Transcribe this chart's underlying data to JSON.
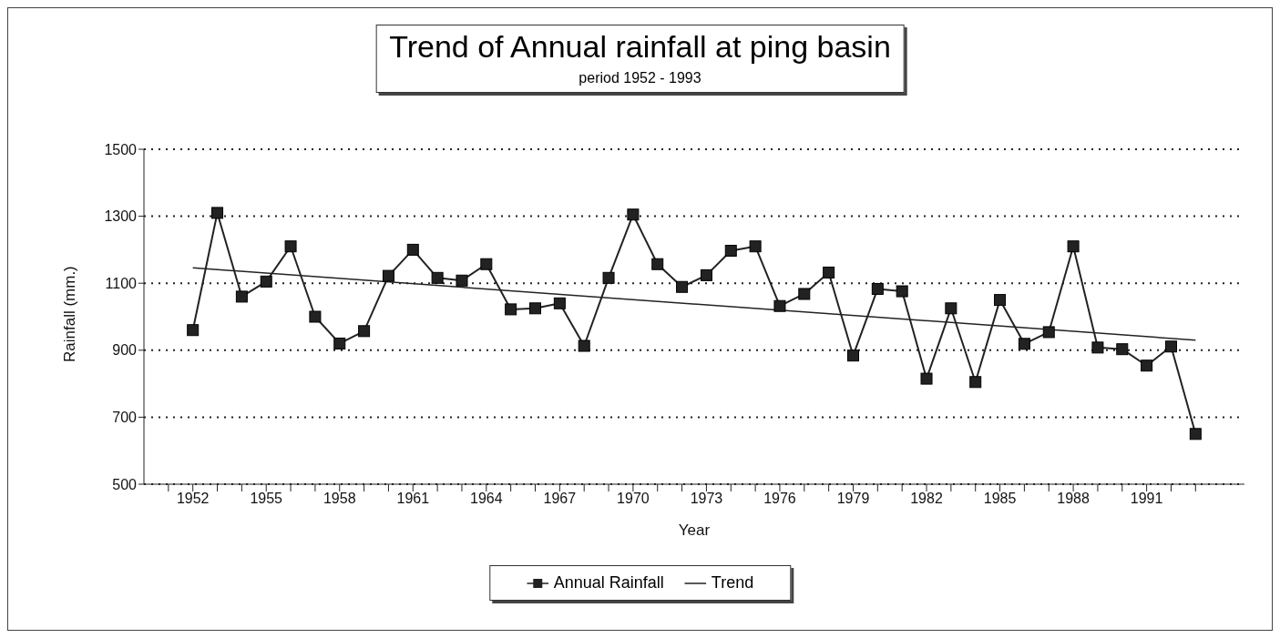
{
  "chart_data": {
    "type": "line",
    "title": "Trend of Annual rainfall at ping basin",
    "subtitle": "period 1952 - 1993",
    "xlabel": "Year",
    "ylabel": "Rainfall (mm.)",
    "x": [
      1952,
      1953,
      1954,
      1955,
      1956,
      1957,
      1958,
      1959,
      1960,
      1961,
      1962,
      1963,
      1964,
      1965,
      1966,
      1967,
      1968,
      1969,
      1970,
      1971,
      1972,
      1973,
      1974,
      1975,
      1976,
      1977,
      1978,
      1979,
      1980,
      1981,
      1982,
      1983,
      1984,
      1985,
      1986,
      1987,
      1988,
      1989,
      1990,
      1991,
      1992,
      1993
    ],
    "series": [
      {
        "name": "Annual Rainfall",
        "color": "#222222",
        "marker": "square",
        "values": [
          960,
          1310,
          1060,
          1105,
          1210,
          1000,
          920,
          957,
          1122,
          1200,
          1116,
          1108,
          1157,
          1022,
          1025,
          1040,
          913,
          1116,
          1305,
          1157,
          1089,
          1124,
          1197,
          1210,
          1032,
          1068,
          1132,
          884,
          1083,
          1076,
          815,
          1025,
          805,
          1050,
          919,
          954,
          1210,
          908,
          903,
          854,
          911,
          650
        ]
      },
      {
        "name": "Trend",
        "type": "line",
        "color": "#222222",
        "marker": "none",
        "x": [
          1952,
          1993
        ],
        "values": [
          1146,
          930
        ]
      }
    ],
    "xlim": [
      1950,
      1995
    ],
    "xticks": [
      {
        "value": 1951,
        "label": null
      },
      {
        "value": 1952,
        "label": "1952"
      },
      {
        "value": 1953,
        "label": null
      },
      {
        "value": 1954,
        "label": null
      },
      {
        "value": 1955,
        "label": "1955"
      },
      {
        "value": 1956,
        "label": null
      },
      {
        "value": 1957,
        "label": null
      },
      {
        "value": 1958,
        "label": "1958"
      },
      {
        "value": 1959,
        "label": null
      },
      {
        "value": 1960,
        "label": null
      },
      {
        "value": 1961,
        "label": "1961"
      },
      {
        "value": 1962,
        "label": null
      },
      {
        "value": 1963,
        "label": null
      },
      {
        "value": 1964,
        "label": "1964"
      },
      {
        "value": 1965,
        "label": null
      },
      {
        "value": 1966,
        "label": null
      },
      {
        "value": 1967,
        "label": "1967"
      },
      {
        "value": 1968,
        "label": null
      },
      {
        "value": 1969,
        "label": null
      },
      {
        "value": 1970,
        "label": "1970"
      },
      {
        "value": 1971,
        "label": null
      },
      {
        "value": 1972,
        "label": null
      },
      {
        "value": 1973,
        "label": "1973"
      },
      {
        "value": 1974,
        "label": null
      },
      {
        "value": 1975,
        "label": null
      },
      {
        "value": 1976,
        "label": "1976"
      },
      {
        "value": 1977,
        "label": null
      },
      {
        "value": 1978,
        "label": null
      },
      {
        "value": 1979,
        "label": "1979"
      },
      {
        "value": 1980,
        "label": null
      },
      {
        "value": 1981,
        "label": null
      },
      {
        "value": 1982,
        "label": "1982"
      },
      {
        "value": 1983,
        "label": null
      },
      {
        "value": 1984,
        "label": null
      },
      {
        "value": 1985,
        "label": "1985"
      },
      {
        "value": 1986,
        "label": null
      },
      {
        "value": 1987,
        "label": null
      },
      {
        "value": 1988,
        "label": "1988"
      },
      {
        "value": 1989,
        "label": null
      },
      {
        "value": 1990,
        "label": null
      },
      {
        "value": 1991,
        "label": "1991"
      },
      {
        "value": 1992,
        "label": null
      },
      {
        "value": 1993,
        "label": null
      }
    ],
    "ylim": [
      500,
      1500
    ],
    "yticks": [
      500,
      700,
      900,
      1100,
      1300,
      1500
    ],
    "grid": "y",
    "legend": "bottom"
  }
}
